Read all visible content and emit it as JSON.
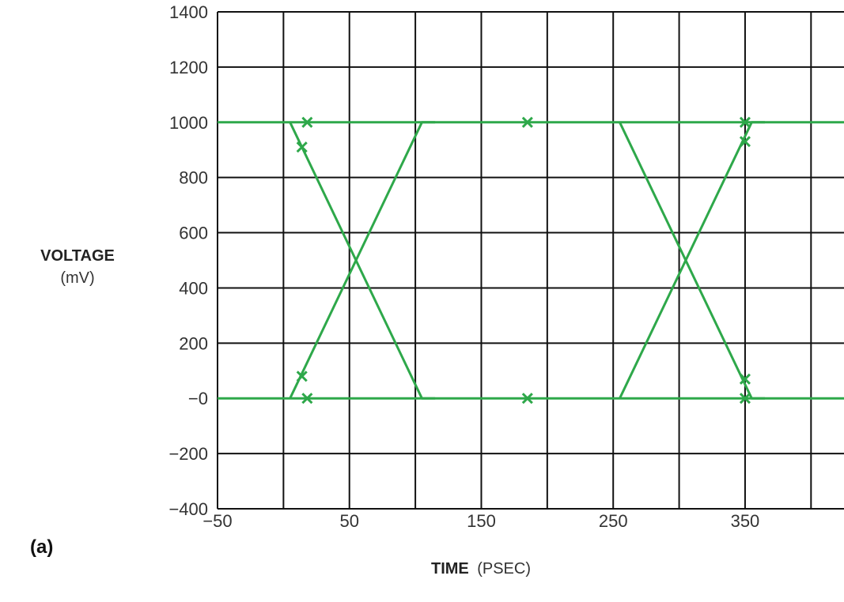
{
  "chart_data": {
    "type": "line",
    "panel_label": "(a)",
    "xlabel": "TIME",
    "xlabel_unit": "(PSEC)",
    "ylabel": "VOLTAGE",
    "ylabel_unit": "(mV)",
    "xlim": [
      -50,
      425
    ],
    "ylim": [
      -400,
      1400
    ],
    "x_ticks": [
      -50,
      50,
      150,
      250,
      350
    ],
    "x_tick_labels": [
      "−50",
      "50",
      "150",
      "250",
      "350"
    ],
    "x_grid": [
      -50,
      0,
      50,
      100,
      150,
      200,
      250,
      300,
      350,
      400
    ],
    "y_ticks": [
      -400,
      -200,
      0,
      200,
      400,
      600,
      800,
      1000,
      1200,
      1400
    ],
    "y_tick_labels": [
      "−400",
      "−200",
      "−0",
      "200",
      "400",
      "600",
      "800",
      "1000",
      "1200",
      "1400"
    ],
    "grid": true,
    "colors": {
      "trace": "#2ea84a",
      "grid": "#111111"
    },
    "series": [
      {
        "values_xy": [
          [
            -50,
            1000
          ],
          [
            425,
            1000
          ]
        ]
      },
      {
        "values_xy": [
          [
            -50,
            0
          ],
          [
            425,
            0
          ]
        ]
      },
      {
        "values_xy": [
          [
            5,
            1000
          ],
          [
            105,
            0
          ],
          [
            115,
            0
          ]
        ]
      },
      {
        "values_xy": [
          [
            5,
            0
          ],
          [
            105,
            1000
          ],
          [
            115,
            1000
          ]
        ]
      },
      {
        "values_xy": [
          [
            255,
            1000
          ],
          [
            355,
            0
          ],
          [
            365,
            0
          ]
        ]
      },
      {
        "values_xy": [
          [
            255,
            0
          ],
          [
            355,
            1000
          ],
          [
            365,
            1000
          ]
        ]
      }
    ],
    "markers": [
      [
        18,
        1000
      ],
      [
        18,
        0
      ],
      [
        14,
        910
      ],
      [
        14,
        80
      ],
      [
        185,
        1000
      ],
      [
        185,
        0
      ],
      [
        350,
        1000
      ],
      [
        350,
        0
      ],
      [
        350,
        930
      ],
      [
        350,
        70
      ]
    ]
  }
}
